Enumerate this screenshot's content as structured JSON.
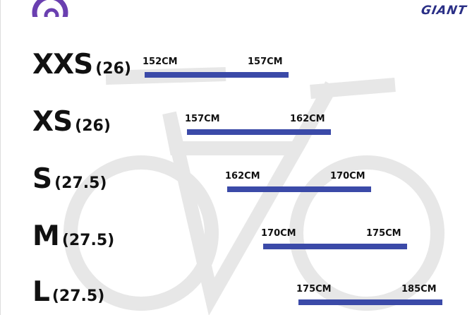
{
  "header": {
    "brand_logo_text": "GIANT",
    "brand_color": "#2a2f86",
    "left_logo": "purple-swirl-logo",
    "logo_color": "#6a3fb0"
  },
  "chart_data": {
    "type": "range-bar",
    "title": "",
    "bar_color": "#3b4aa8",
    "unit": "CM",
    "rows": [
      {
        "size": "XXS",
        "wheel": "(26)",
        "min": 152,
        "max": 157,
        "min_label": "152CM",
        "max_label": "157CM"
      },
      {
        "size": "XS",
        "wheel": "(26)",
        "min": 157,
        "max": 162,
        "min_label": "157CM",
        "max_label": "162CM"
      },
      {
        "size": "S",
        "wheel": "(27.5)",
        "min": 162,
        "max": 170,
        "min_label": "162CM",
        "max_label": "170CM"
      },
      {
        "size": "M",
        "wheel": "(27.5)",
        "min": 170,
        "max": 175,
        "min_label": "170CM",
        "max_label": "175CM"
      },
      {
        "size": "L",
        "wheel": "(27.5)",
        "min": 175,
        "max": 185,
        "min_label": "175CM",
        "max_label": "185CM"
      }
    ]
  }
}
